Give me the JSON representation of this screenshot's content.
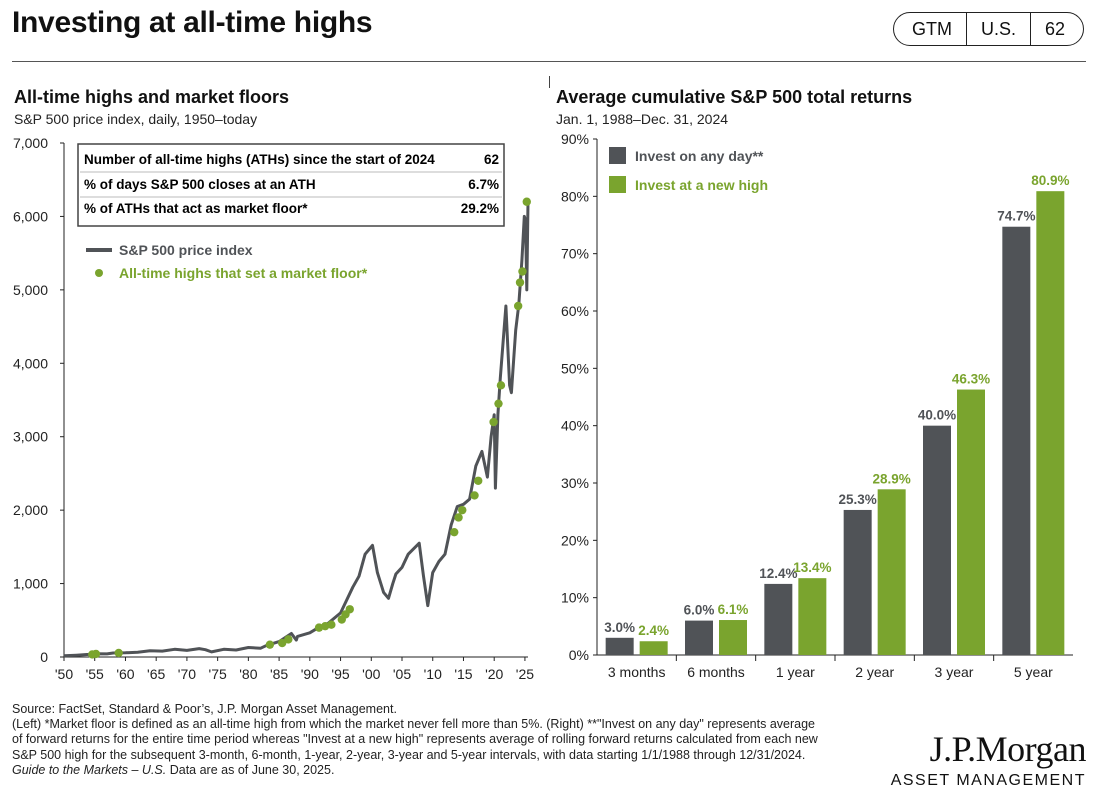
{
  "header": {
    "title": "Investing at all-time highs",
    "badge": [
      "GTM",
      "U.S.",
      "62"
    ]
  },
  "left": {
    "title": "All-time highs and market floors",
    "subtitle": "S&P 500 price index, daily, 1950–today",
    "stats": [
      {
        "label": "Number of all-time highs (ATHs) since the start of 2024",
        "value": "62"
      },
      {
        "label": "% of days S&P 500 closes at an ATH",
        "value": "6.7%"
      },
      {
        "label": "% of ATHs that act as market floor*",
        "value": "29.2%"
      }
    ]
  },
  "right": {
    "title": "Average cumulative S&P 500 total returns",
    "subtitle": "Jan. 1, 1988–Dec. 31, 2024"
  },
  "colors": {
    "gray": "#505357",
    "green": "#7aa42e",
    "text": "#111111"
  },
  "chart_data": [
    {
      "type": "line",
      "ylim": [
        0,
        7000
      ],
      "xlim": [
        1950,
        2025.5
      ],
      "yticks": [
        0,
        1000,
        2000,
        3000,
        4000,
        5000,
        6000,
        7000
      ],
      "ytick_labels": [
        "0",
        "1,000",
        "2,000",
        "3,000",
        "4,000",
        "5,000",
        "6,000",
        "7,000"
      ],
      "xticks": [
        1950,
        1955,
        1960,
        1965,
        1970,
        1975,
        1980,
        1985,
        1990,
        1995,
        2000,
        2005,
        2010,
        2015,
        2020,
        2025
      ],
      "xtick_labels": [
        "'50",
        "'55",
        "'60",
        "'65",
        "'70",
        "'75",
        "'80",
        "'85",
        "'90",
        "'95",
        "'00",
        "'05",
        "'10",
        "'15",
        "'20",
        "'25"
      ],
      "legend": "top-left",
      "series": [
        {
          "name": "S&P 500 price index",
          "x": [
            1950,
            1952,
            1954,
            1955,
            1957,
            1958,
            1960,
            1962,
            1964,
            1966,
            1968,
            1970,
            1972,
            1973,
            1974,
            1976,
            1978,
            1980,
            1982,
            1983,
            1985,
            1987,
            1987.8,
            1988,
            1990,
            1991,
            1993,
            1995,
            1997,
            1998,
            1999,
            2000.2,
            2001,
            2002,
            2002.8,
            2003.5,
            2004,
            2005,
            2006,
            2007.8,
            2008.5,
            2009.2,
            2010,
            2011,
            2012,
            2013,
            2014,
            2015,
            2016,
            2017,
            2018,
            2018.9,
            2019.5,
            2020.0,
            2020.2,
            2020.6,
            2021,
            2021.9,
            2022.5,
            2022.8,
            2023.5,
            2024,
            2024.5,
            2024.9,
            2025.1,
            2025.3,
            2025.5
          ],
          "y": [
            17,
            25,
            35,
            45,
            42,
            55,
            57,
            65,
            85,
            80,
            105,
            90,
            115,
            100,
            70,
            105,
            95,
            130,
            120,
            160,
            210,
            320,
            230,
            280,
            330,
            380,
            460,
            600,
            950,
            1100,
            1400,
            1520,
            1150,
            880,
            800,
            1000,
            1130,
            1220,
            1400,
            1550,
            1100,
            700,
            1150,
            1300,
            1400,
            1800,
            2050,
            2080,
            2150,
            2600,
            2800,
            2450,
            3000,
            3300,
            2300,
            3300,
            3800,
            4780,
            3700,
            3600,
            4450,
            4800,
            5400,
            6000,
            5950,
            5000,
            6200
          ]
        },
        {
          "name": "All-time highs that set a market floor*",
          "x": [
            1954.6,
            1955.2,
            1958.9,
            1983.5,
            1985.5,
            1986.5,
            1991.5,
            1992.5,
            1993.5,
            1995.2,
            1995.8,
            1996.5,
            2013.5,
            2014.2,
            2014.8,
            2016.8,
            2017.4,
            2019.9,
            2020.7,
            2021.1,
            2023.9,
            2024.2,
            2024.6,
            2025.3
          ],
          "y": [
            35,
            42,
            55,
            168,
            190,
            240,
            400,
            420,
            440,
            510,
            580,
            650,
            1700,
            1900,
            2000,
            2200,
            2400,
            3200,
            3450,
            3700,
            4780,
            5100,
            5250,
            6200
          ]
        }
      ]
    },
    {
      "type": "bar",
      "categories": [
        "3 months",
        "6 months",
        "1 year",
        "2 year",
        "3 year",
        "5 year"
      ],
      "ylim": [
        0,
        90
      ],
      "yticks": [
        0,
        10,
        20,
        30,
        40,
        50,
        60,
        70,
        80,
        90
      ],
      "ytick_labels": [
        "0%",
        "10%",
        "20%",
        "30%",
        "40%",
        "50%",
        "60%",
        "70%",
        "80%",
        "90%"
      ],
      "legend": "top-left",
      "series": [
        {
          "name": "Invest on any day**",
          "values": [
            3.0,
            6.0,
            12.4,
            25.3,
            40.0,
            74.7
          ],
          "labels": [
            "3.0%",
            "6.0%",
            "12.4%",
            "25.3%",
            "40.0%",
            "74.7%"
          ]
        },
        {
          "name": "Invest at a new high",
          "values": [
            2.4,
            6.1,
            13.4,
            28.9,
            46.3,
            80.9
          ],
          "labels": [
            "2.4%",
            "6.1%",
            "13.4%",
            "28.9%",
            "46.3%",
            "80.9%"
          ]
        }
      ]
    }
  ],
  "footer": {
    "source": "Source: FactSet, Standard & Poor’s, J.P. Morgan Asset Management.",
    "note1": "(Left) *Market floor is defined as an all-time high from which the market never fell more than 5%. (Right) **\"Invest on any day\" represents average",
    "note2": "of forward returns for the entire time period whereas \"Invest at a new high\" represents average of rolling forward returns calculated from each new",
    "note3": "S&P 500 high for the subsequent 3-month, 6-month, 1-year, 2-year, 3-year and 5-year intervals, with data starting 1/1/1988  through 12/31/2024.",
    "guide": "Guide to the Markets – U.S.",
    "asof": " Data are as of June 30, 2025."
  },
  "logo": {
    "name": "J.P.Morgan",
    "sub": "ASSET MANAGEMENT"
  }
}
